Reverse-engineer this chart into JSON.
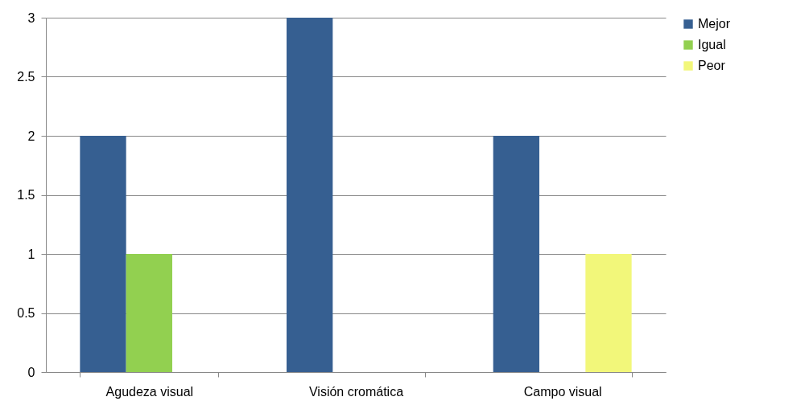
{
  "chart_data": {
    "type": "bar",
    "categories": [
      "Agudeza visual",
      "Visión cromática",
      "Campo visual"
    ],
    "series": [
      {
        "name": "Mejor",
        "color": "#365f91",
        "values": [
          2,
          3,
          2
        ]
      },
      {
        "name": "Igual",
        "color": "#92d050",
        "values": [
          1,
          0,
          0
        ]
      },
      {
        "name": "Peor",
        "color": "#f2f77a",
        "values": [
          0,
          0,
          1
        ]
      }
    ],
    "ylim": [
      0,
      3
    ],
    "yticks": [
      0,
      0.5,
      1,
      1.5,
      2,
      2.5,
      3
    ],
    "grid": "y",
    "legend": "right"
  }
}
